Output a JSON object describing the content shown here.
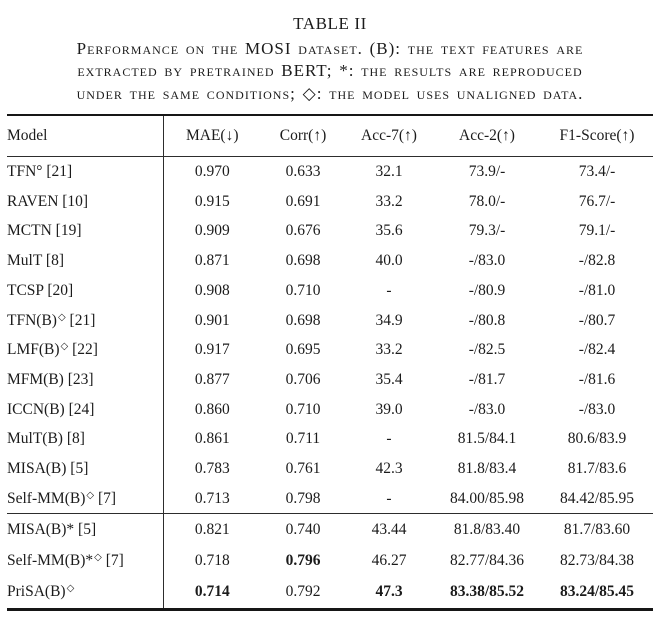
{
  "title": "TABLE II",
  "caption_lines": [
    "Performance on the MOSI dataset. (B): the text features are",
    "extracted by pretrained BERT; *: the results are reproduced",
    "under the same conditions; ◇: the model uses unaligned data."
  ],
  "colors": {
    "text": "#1b1b1b",
    "rule_heavy": "#161616",
    "rule_light": "#2d2d2d",
    "background": "#ffffff"
  },
  "table": {
    "columns": [
      "Model",
      "MAE(↓)",
      "Corr(↑)",
      "Acc-7(↑)",
      "Acc-2(↑)",
      "F1-Score(↑)"
    ],
    "groups": [
      {
        "rows": [
          {
            "model": {
              "base": "TFN°",
              "sup": "",
              "ref": "[21]"
            },
            "values": [
              "0.970",
              "0.633",
              "32.1",
              "73.9/-",
              "73.4/-"
            ],
            "bold": []
          },
          {
            "model": {
              "base": "RAVEN",
              "sup": "",
              "ref": "[10]"
            },
            "values": [
              "0.915",
              "0.691",
              "33.2",
              "78.0/-",
              "76.7/-"
            ],
            "bold": []
          },
          {
            "model": {
              "base": "MCTN",
              "sup": "",
              "ref": "[19]"
            },
            "values": [
              "0.909",
              "0.676",
              "35.6",
              "79.3/-",
              "79.1/-"
            ],
            "bold": []
          },
          {
            "model": {
              "base": "MulT",
              "sup": "",
              "ref": "[8]"
            },
            "values": [
              "0.871",
              "0.698",
              "40.0",
              "-/83.0",
              "-/82.8"
            ],
            "bold": []
          },
          {
            "model": {
              "base": "TCSP",
              "sup": "",
              "ref": "[20]"
            },
            "values": [
              "0.908",
              "0.710",
              "-",
              "-/80.9",
              "-/81.0"
            ],
            "bold": []
          },
          {
            "model": {
              "base": "TFN(B)",
              "sup": "◇",
              "ref": "[21]"
            },
            "values": [
              "0.901",
              "0.698",
              "34.9",
              "-/80.8",
              "-/80.7"
            ],
            "bold": []
          },
          {
            "model": {
              "base": "LMF(B)",
              "sup": "◇",
              "ref": "[22]"
            },
            "values": [
              "0.917",
              "0.695",
              "33.2",
              "-/82.5",
              "-/82.4"
            ],
            "bold": []
          },
          {
            "model": {
              "base": "MFM(B)",
              "sup": "",
              "ref": "[23]"
            },
            "values": [
              "0.877",
              "0.706",
              "35.4",
              "-/81.7",
              "-/81.6"
            ],
            "bold": []
          },
          {
            "model": {
              "base": "ICCN(B)",
              "sup": "",
              "ref": "[24]"
            },
            "values": [
              "0.860",
              "0.710",
              "39.0",
              "-/83.0",
              "-/83.0"
            ],
            "bold": []
          },
          {
            "model": {
              "base": "MulT(B)",
              "sup": "",
              "ref": "[8]"
            },
            "values": [
              "0.861",
              "0.711",
              "-",
              "81.5/84.1",
              "80.6/83.9"
            ],
            "bold": []
          },
          {
            "model": {
              "base": "MISA(B)",
              "sup": "",
              "ref": "[5]"
            },
            "values": [
              "0.783",
              "0.761",
              "42.3",
              "81.8/83.4",
              "81.7/83.6"
            ],
            "bold": []
          },
          {
            "model": {
              "base": "Self-MM(B)",
              "sup": "◇",
              "ref": "[7]"
            },
            "values": [
              "0.713",
              "0.798",
              "-",
              "84.00/85.98",
              "84.42/85.95"
            ],
            "bold": []
          }
        ]
      },
      {
        "rows": [
          {
            "model": {
              "base": "MISA(B)*",
              "sup": "",
              "ref": "[5]"
            },
            "values": [
              "0.821",
              "0.740",
              "43.44",
              "81.8/83.40",
              "81.7/83.60"
            ],
            "bold": []
          },
          {
            "model": {
              "base": "Self-MM(B)*",
              "sup": "◇",
              "ref": "[7]"
            },
            "values": [
              "0.718",
              "0.796",
              "46.27",
              "82.77/84.36",
              "82.73/84.38"
            ],
            "bold": [
              1
            ]
          },
          {
            "model": {
              "base": "PriSA(B)",
              "sup": "◇",
              "ref": ""
            },
            "values": [
              "0.714",
              "0.792",
              "47.3",
              "83.38/85.52",
              "83.24/85.45"
            ],
            "bold": [
              0,
              2,
              3,
              4
            ]
          }
        ]
      }
    ]
  }
}
